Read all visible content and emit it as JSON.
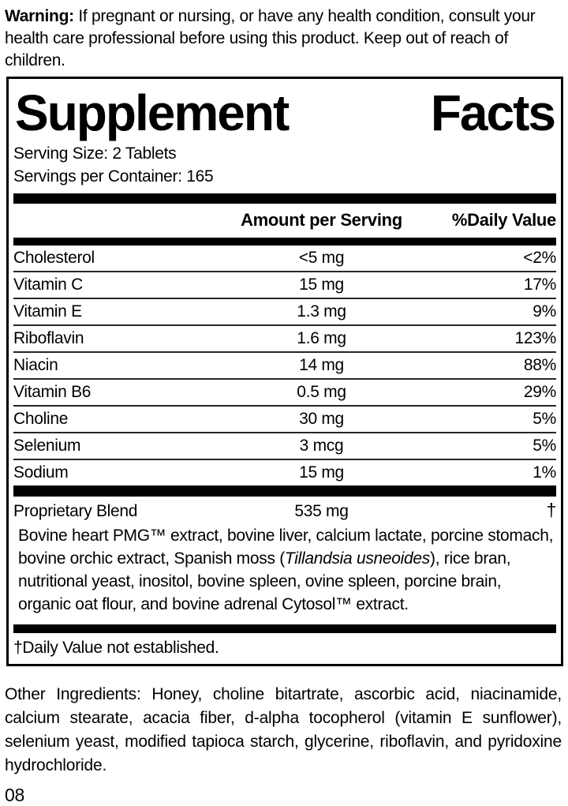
{
  "warning": {
    "label": "Warning:",
    "text": " If pregnant or nursing, or have any health condition, consult your health care professional before using this product. Keep out of reach of children."
  },
  "panel": {
    "title_word1": "Supplement",
    "title_word2": "Facts",
    "serving_size": "Serving Size: 2 Tablets",
    "servings_per_container": "Servings per Container: 165",
    "columns": {
      "amount": "Amount per Serving",
      "daily_value": "%Daily Value"
    },
    "rows": [
      {
        "name": "Cholesterol",
        "amount": "<5 mg",
        "dv": "<2%"
      },
      {
        "name": "Vitamin C",
        "amount": "15 mg",
        "dv": "17%"
      },
      {
        "name": "Vitamin E",
        "amount": "1.3 mg",
        "dv": "9%"
      },
      {
        "name": "Riboflavin",
        "amount": "1.6 mg",
        "dv": "123%"
      },
      {
        "name": "Niacin",
        "amount": "14 mg",
        "dv": "88%"
      },
      {
        "name": "Vitamin B6",
        "amount": "0.5 mg",
        "dv": "29%"
      },
      {
        "name": "Choline",
        "amount": "30 mg",
        "dv": "5%"
      },
      {
        "name": "Selenium",
        "amount": "3 mcg",
        "dv": "5%"
      },
      {
        "name": "Sodium",
        "amount": "15 mg",
        "dv": "1%"
      }
    ],
    "proprietary_blend": {
      "name": "Proprietary Blend",
      "amount": "535 mg",
      "dv": "†"
    },
    "blend_description": {
      "part1": "Bovine heart PMG™ extract, bovine liver, calcium lactate, porcine stomach, bovine orchic extract, Spanish moss (",
      "italic": "Tillandsia usneoides",
      "part2": "), rice bran, nutritional yeast, inositol, bovine spleen, ovine spleen, porcine brain, organic oat flour, and bovine adrenal Cytosol™ extract."
    },
    "footnote": "†Daily Value not established."
  },
  "other_ingredients": {
    "label": "Other Ingredients:",
    "text": " Honey, choline bitartrate, ascorbic acid, niacinamide, calcium stearate, acacia fiber, d-alpha tocopherol (vitamin E sunflower), selenium yeast, modified tapioca starch, glycerine, riboflavin, and pyridoxine hydrochloride."
  },
  "footer_code": "08"
}
